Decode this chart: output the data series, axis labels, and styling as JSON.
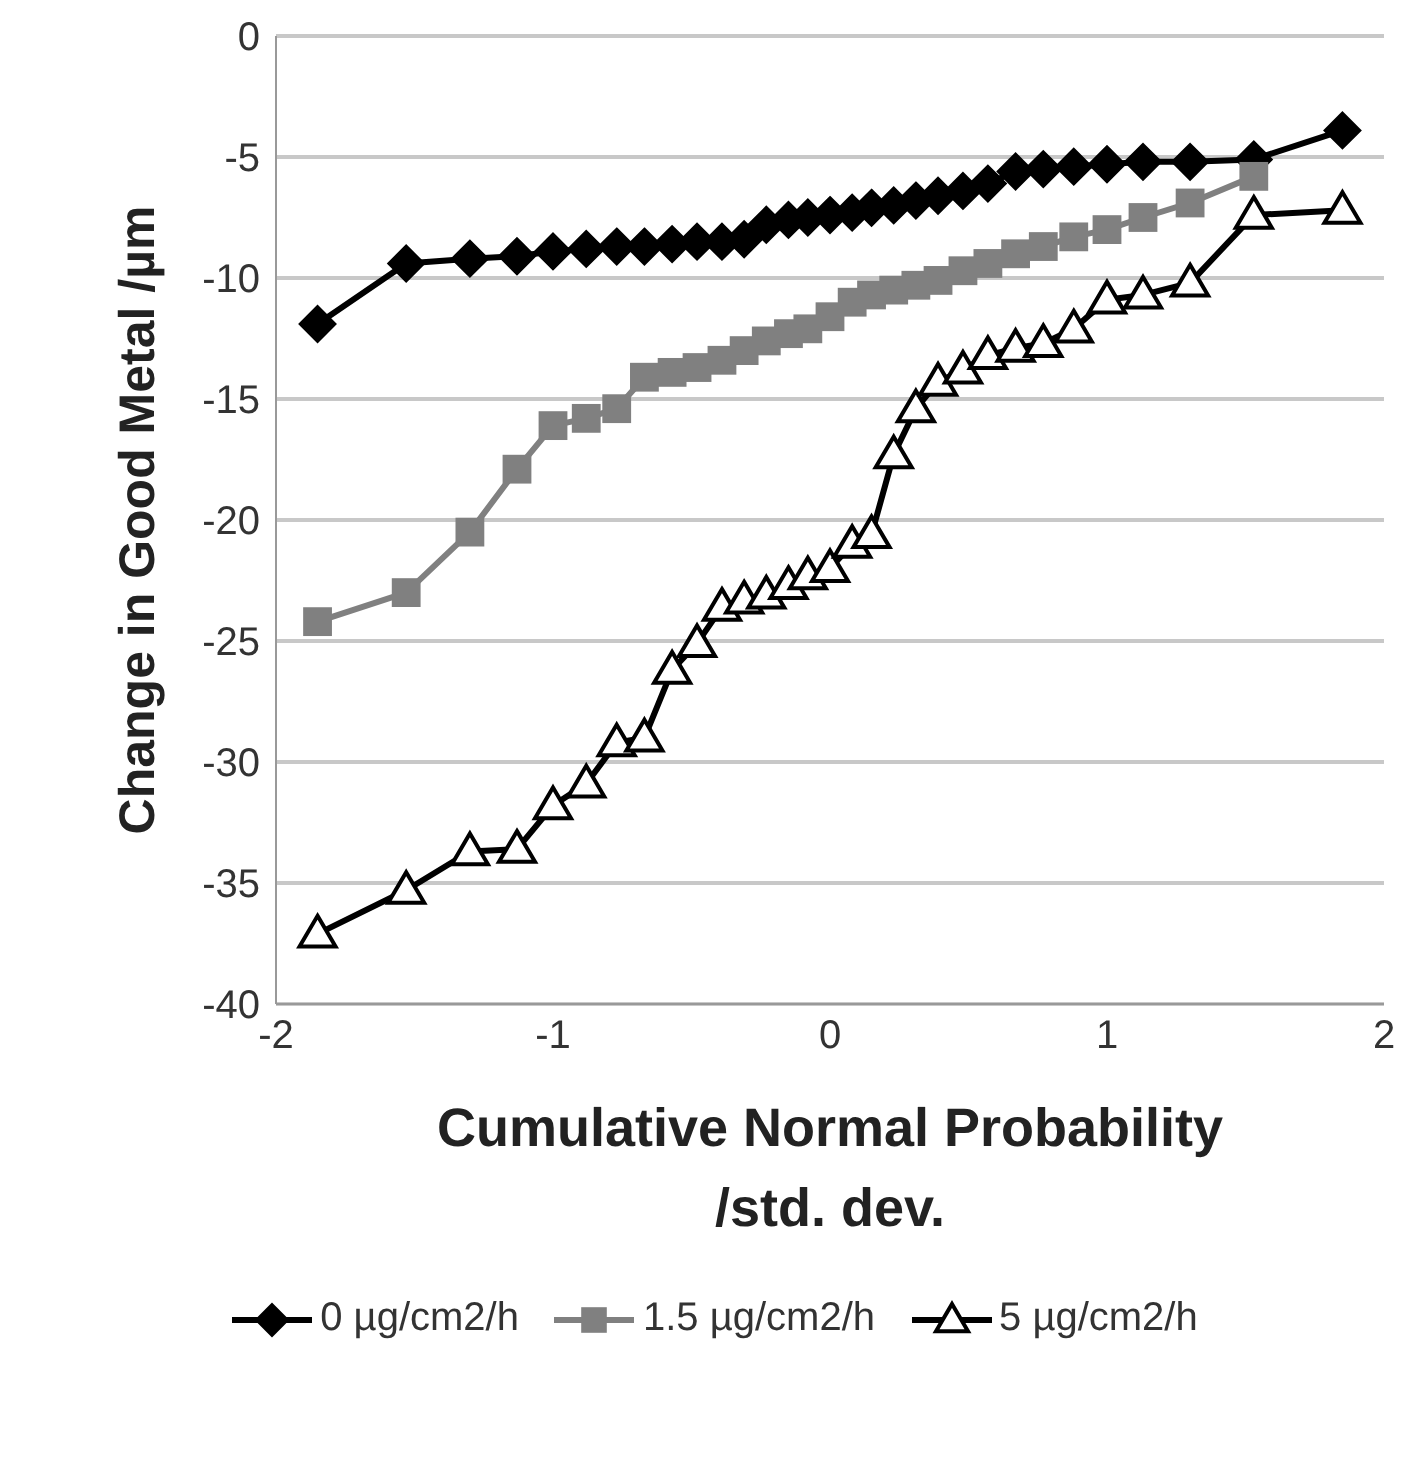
{
  "chart_data": {
    "type": "line",
    "xlabel": "Cumulative Normal Probability /std. dev.",
    "ylabel": "Change in Good Metal /µm",
    "x": [
      -1.85,
      -1.53,
      -1.3,
      -1.13,
      -1.0,
      -0.88,
      -0.77,
      -0.67,
      -0.57,
      -0.48,
      -0.39,
      -0.31,
      -0.23,
      -0.15,
      -0.08,
      0,
      0.08,
      0.15,
      0.23,
      0.31,
      0.39,
      0.48,
      0.57,
      0.67,
      0.77,
      0.88,
      1.0,
      1.13,
      1.3,
      1.53,
      1.85
    ],
    "series": [
      {
        "name": "0 µg/cm2/h",
        "color": "#000000",
        "marker": "diamond",
        "values": [
          -11.9,
          -9.4,
          -9.2,
          -9.1,
          -8.9,
          -8.8,
          -8.7,
          -8.7,
          -8.6,
          -8.5,
          -8.5,
          -8.4,
          -7.8,
          -7.6,
          -7.5,
          -7.4,
          -7.3,
          -7.1,
          -7.0,
          -6.8,
          -6.6,
          -6.4,
          -6.1,
          -5.6,
          -5.5,
          -5.4,
          -5.3,
          -5.2,
          -5.2,
          -5.1,
          -3.9
        ]
      },
      {
        "name": "1.5 µg/cm2/h",
        "color": "#808080",
        "marker": "square",
        "values": [
          -24.2,
          -23.0,
          -20.5,
          -17.9,
          -16.1,
          -15.8,
          -15.4,
          -14.1,
          -13.9,
          -13.7,
          -13.4,
          -13.0,
          -12.6,
          -12.3,
          -12.1,
          -11.6,
          -11.0,
          -10.7,
          -10.5,
          -10.3,
          -10.1,
          -9.7,
          -9.4,
          -9.0,
          -8.7,
          -8.3,
          -8.0,
          -7.5,
          -6.9,
          -5.8,
          null
        ]
      },
      {
        "name": "5 µg/cm2/h",
        "color": "#000000",
        "marker": "triangle",
        "values": [
          -37.1,
          -35.3,
          -33.7,
          -33.6,
          -31.8,
          -30.9,
          -29.2,
          -29.0,
          -26.2,
          -25.1,
          -23.6,
          -23.3,
          -23.1,
          -22.7,
          -22.3,
          -22.0,
          -21.0,
          -20.6,
          -17.3,
          -15.4,
          -14.3,
          -13.8,
          -13.2,
          -12.9,
          -12.7,
          -12.1,
          -10.9,
          -10.7,
          -10.2,
          -7.4,
          -7.2
        ]
      }
    ],
    "xlim": [
      -2,
      2
    ],
    "xticks": [
      -2,
      -1,
      0,
      1,
      2
    ],
    "ylim": [
      -40,
      0
    ],
    "yticks": [
      -40,
      -35,
      -30,
      -25,
      -20,
      -15,
      -10,
      -5,
      0
    ],
    "grid": "y",
    "legend": "bottom",
    "line_style": "solid"
  }
}
